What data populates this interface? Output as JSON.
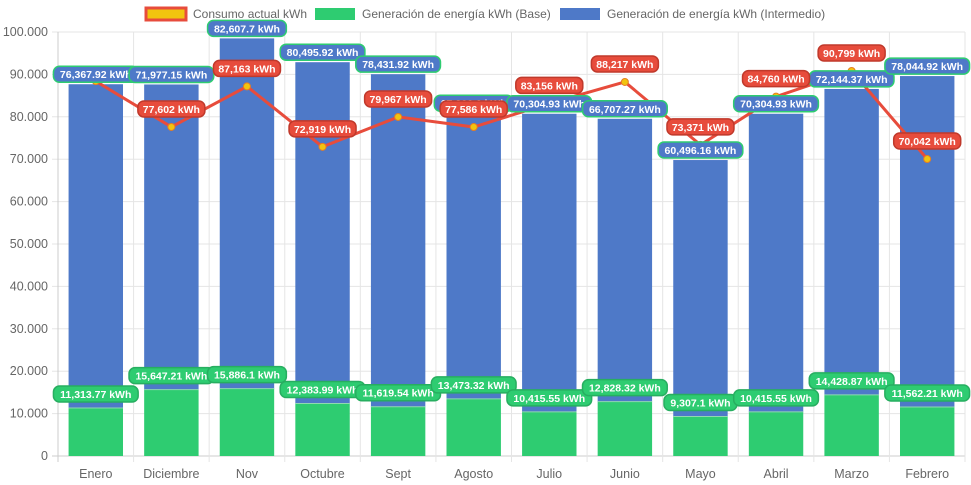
{
  "chart_data": {
    "type": "bar",
    "stacked": true,
    "title": "",
    "xlabel": "",
    "ylabel": "",
    "ylim": [
      0,
      100000
    ],
    "y_ticks": [
      "0",
      "10.000",
      "20.000",
      "30.000",
      "40.000",
      "50.000",
      "60.000",
      "70.000",
      "80.000",
      "90.000",
      "100.000"
    ],
    "y_tick_values": [
      0,
      10000,
      20000,
      30000,
      40000,
      50000,
      60000,
      70000,
      80000,
      90000,
      100000
    ],
    "grid": true,
    "legend_position": "top",
    "categories": [
      "Enero",
      "Diciembre",
      "Nov",
      "Octubre",
      "Sept",
      "Agosto",
      "Julio",
      "Junio",
      "Mayo",
      "Abril",
      "Marzo",
      "Febrero"
    ],
    "series": [
      {
        "name": "Consumo actual kWh",
        "type": "line",
        "color": "#e74c3c",
        "point_color": "#f1c40f",
        "values": [
          88400,
          77602,
          87163,
          72919,
          79967,
          77586,
          83156,
          88217,
          73371,
          84760,
          90799,
          70042
        ],
        "labels": [
          "",
          "77,602 kWh",
          "87,163 kWh",
          "72,919 kWh",
          "79,967 kWh",
          "77,586 kWh",
          "83,156 kWh",
          "88,217 kWh",
          "73,371 kWh",
          "84,760 kWh",
          "90,799 kWh",
          "70,042 kWh"
        ]
      },
      {
        "name": "Generación de energía kWh (Base)",
        "type": "bar",
        "color": "#2ecc71",
        "values": [
          11313.77,
          15647.21,
          15886.1,
          12383.99,
          11619.54,
          13473.32,
          10415.55,
          12828.32,
          9307.1,
          10415.55,
          14428.87,
          11562.21
        ],
        "labels": [
          "11,313.77 kWh",
          "15,647.21 kWh",
          "15,886.1 kWh",
          "12,383.99 kWh",
          "11,619.54 kWh",
          "13,473.32 kWh",
          "10,415.55 kWh",
          "12,828.32 kWh",
          "9,307.1 kWh",
          "10,415.55 kWh",
          "14,428.87 kWh",
          "11,562.21 kWh"
        ]
      },
      {
        "name": "Generación de energía kWh (Intermedio)",
        "type": "bar",
        "color": "#4e79c8",
        "values": [
          76367.92,
          71977.15,
          82607.7,
          80495.92,
          78431.92,
          67366.6,
          70304.93,
          66707.27,
          60496.16,
          70304.93,
          72144.37,
          78044.92
        ],
        "labels": [
          "76,367.92 kWh",
          "71,977.15 kWh",
          "82,607.7 kWh",
          "80,495.92 kWh",
          "78,431.92 kWh",
          "67,366.6 kWh",
          "70,304.93 kWh",
          "66,707.27 kWh",
          "60,496.16 kWh",
          "70,304.93 kWh",
          "72,144.37 kWh",
          "78,044.92 kWh"
        ]
      }
    ]
  },
  "legend": {
    "items": [
      {
        "label": "Consumo actual kWh",
        "fill": "#f1c40f",
        "stroke": "#e74c3c"
      },
      {
        "label": "Generación de energía kWh (Base)",
        "fill": "#2ecc71",
        "stroke": "#2ecc71"
      },
      {
        "label": "Generación de energía kWh (Intermedio)",
        "fill": "#4e79c8",
        "stroke": "#4e79c8"
      }
    ]
  }
}
